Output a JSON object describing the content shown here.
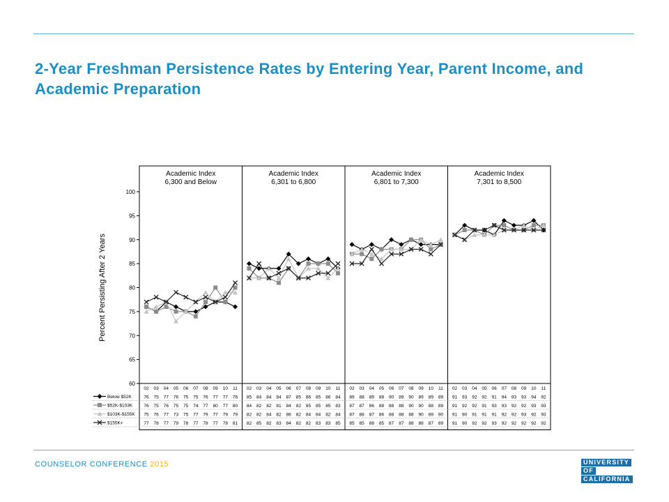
{
  "slide": {
    "title": "2-Year Freshman Persistence Rates by Entering Year, Parent Income, and Academic Preparation",
    "footer_org": "COUNSELOR CONFERENCE",
    "footer_year": "2015",
    "logo_lines": [
      "UNIVERSITY",
      "OF",
      "CALIFORNIA"
    ],
    "colors": {
      "accent": "#1a8fc6",
      "rule": "#5fb3d6",
      "footer_year": "#f2b01e",
      "logo_bg": "#1d6fa8"
    }
  },
  "chart_data": {
    "type": "line",
    "ylabel": "Percent Persisting After 2 Years",
    "ylim": [
      60,
      100
    ],
    "yticks": [
      60,
      65,
      70,
      75,
      80,
      85,
      90,
      95,
      100
    ],
    "x": [
      "02",
      "03",
      "04",
      "05",
      "06",
      "07",
      "08",
      "09",
      "10",
      "11"
    ],
    "legend_position": "bottom-left table",
    "series_styles": [
      {
        "name": "Below $52K",
        "color": "#000000",
        "marker": "diamond"
      },
      {
        "name": "$52K-$103K",
        "color": "#8c8c8c",
        "marker": "square"
      },
      {
        "name": "$103K-$155K",
        "color": "#c4c4c4",
        "marker": "triangle"
      },
      {
        "name": "$155K+",
        "color": "#222222",
        "marker": "x"
      }
    ],
    "panels": [
      {
        "title_line1": "Academic Index",
        "title_line2": "6,300 and Below",
        "series": [
          {
            "name": "Below $52K",
            "values": [
              76,
              75,
              77,
              76,
              75,
              75,
              76,
              77,
              77,
              76
            ]
          },
          {
            "name": "$52K-$103K",
            "values": [
              76,
              75,
              76,
              75,
              75,
              74,
              77,
              80,
              77,
              80
            ]
          },
          {
            "name": "$103K-$155K",
            "values": [
              75,
              76,
              77,
              73,
              75,
              77,
              79,
              77,
              79,
              79
            ]
          },
          {
            "name": "$155K+",
            "values": [
              77,
              78,
              77,
              79,
              78,
              77,
              78,
              77,
              78,
              81
            ]
          }
        ]
      },
      {
        "title_line1": "Academic Index",
        "title_line2": "6,301 to 6,800",
        "series": [
          {
            "name": "Below $52K",
            "values": [
              85,
              84,
              84,
              84,
              87,
              85,
              86,
              85,
              86,
              84
            ]
          },
          {
            "name": "$52K-$103K",
            "values": [
              84,
              82,
              82,
              81,
              84,
              82,
              85,
              85,
              85,
              83
            ]
          },
          {
            "name": "$103K-$155K",
            "values": [
              82,
              82,
              84,
              82,
              86,
              82,
              84,
              84,
              82,
              84
            ]
          },
          {
            "name": "$155K+",
            "values": [
              82,
              85,
              82,
              83,
              84,
              82,
              82,
              83,
              83,
              85
            ]
          }
        ]
      },
      {
        "title_line1": "Academic Index",
        "title_line2": "6,801 to 7,300",
        "series": [
          {
            "name": "Below $52K",
            "values": [
              89,
              88,
              89,
              88,
              90,
              89,
              90,
              89,
              89,
              89
            ]
          },
          {
            "name": "$52K-$103K",
            "values": [
              87,
              87,
              86,
              88,
              88,
              88,
              90,
              90,
              88,
              89
            ]
          },
          {
            "name": "$103K-$155K",
            "values": [
              87,
              88,
              87,
              86,
              88,
              88,
              88,
              90,
              89,
              90
            ]
          },
          {
            "name": "$155K+",
            "values": [
              85,
              85,
              88,
              85,
              87,
              87,
              88,
              88,
              87,
              89
            ]
          }
        ]
      },
      {
        "title_line1": "Academic Index",
        "title_line2": "7,301 to 8,500",
        "series": [
          {
            "name": "Below $52K",
            "values": [
              91,
              93,
              92,
              92,
              91,
              94,
              93,
              93,
              94,
              92
            ]
          },
          {
            "name": "$52K-$103K",
            "values": [
              91,
              92,
              92,
              91,
              93,
              93,
              92,
              92,
              93,
              93
            ]
          },
          {
            "name": "$103K-$155K",
            "values": [
              91,
              90,
              91,
              91,
              91,
              92,
              92,
              93,
              92,
              93
            ]
          },
          {
            "name": "$155K+",
            "values": [
              91,
              90,
              92,
              92,
              93,
              92,
              92,
              92,
              92,
              92
            ]
          }
        ]
      }
    ]
  }
}
